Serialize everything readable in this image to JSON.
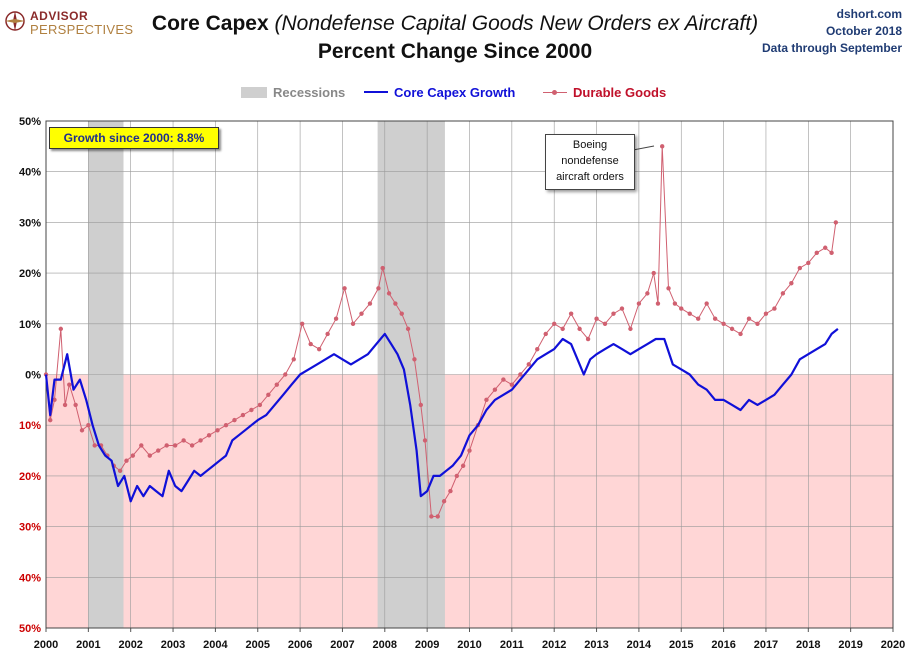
{
  "header": {
    "logo_line1": "ADVISOR",
    "logo_line2": "PERSPECTIVES",
    "title_main": "Core Capex",
    "title_paren": "(Nondefense  Capital Goods New Orders ex Aircraft)",
    "subtitle": "Percent Change Since 2000",
    "source_line1": "dshort.com",
    "source_line2": "October 2018",
    "source_line3": "Data through September"
  },
  "legend": {
    "recessions": "Recessions",
    "core_capex": "Core Capex Growth",
    "durable_goods": "Durable Goods"
  },
  "annotations": {
    "growth_box": "Growth since 2000:  8.8%",
    "callout_1": "Boeing",
    "callout_2": "nondefense",
    "callout_3": "aircraft orders"
  },
  "colors": {
    "core_capex": "#1010d8",
    "durable_goods": "#d06070",
    "recession": "#cfcfcf",
    "negative_zone": "#ffd6d6",
    "grid": "#9a9a9a",
    "positive_tick": "#111111",
    "negative_tick": "#cc0000"
  },
  "chart_data": {
    "type": "line",
    "title": "Core Capex (Nondefense  Capital Goods New Orders ex Aircraft) Percent Change Since 2000",
    "xlim": [
      2000,
      2020
    ],
    "ylim": [
      -50,
      50
    ],
    "x_ticks": [
      "2000",
      "2001",
      "2002",
      "2003",
      "2004",
      "2005",
      "2006",
      "2007",
      "2008",
      "2009",
      "2010",
      "2011",
      "2012",
      "2013",
      "2014",
      "2015",
      "2016",
      "2017",
      "2018",
      "2019",
      "2020"
    ],
    "y_ticks": [
      "50%",
      "40%",
      "30%",
      "20%",
      "10%",
      "0%",
      "10%",
      "20%",
      "30%",
      "40%",
      "50%"
    ],
    "recessions": [
      [
        2001.0,
        2001.83
      ],
      [
        2007.83,
        2009.42
      ]
    ],
    "legend_position": "top-center",
    "grid": true,
    "series": [
      {
        "name": "Core Capex Growth",
        "x": [
          2000,
          2000.1,
          2000.2,
          2000.35,
          2000.5,
          2000.65,
          2000.8,
          2000.95,
          2001.1,
          2001.25,
          2001.4,
          2001.55,
          2001.7,
          2001.85,
          2002.0,
          2002.15,
          2002.3,
          2002.45,
          2002.6,
          2002.75,
          2002.9,
          2003.05,
          2003.2,
          2003.35,
          2003.5,
          2003.65,
          2003.8,
          2003.95,
          2004.1,
          2004.25,
          2004.4,
          2004.55,
          2004.7,
          2004.85,
          2005.0,
          2005.2,
          2005.4,
          2005.6,
          2005.8,
          2006.0,
          2006.2,
          2006.4,
          2006.6,
          2006.8,
          2007.0,
          2007.2,
          2007.4,
          2007.6,
          2007.8,
          2008.0,
          2008.15,
          2008.3,
          2008.45,
          2008.6,
          2008.75,
          2008.85,
          2009.0,
          2009.15,
          2009.3,
          2009.45,
          2009.6,
          2009.8,
          2010.0,
          2010.2,
          2010.4,
          2010.6,
          2010.8,
          2011.0,
          2011.2,
          2011.4,
          2011.6,
          2011.8,
          2012.0,
          2012.2,
          2012.4,
          2012.55,
          2012.7,
          2012.85,
          2013.0,
          2013.2,
          2013.4,
          2013.6,
          2013.8,
          2014.0,
          2014.2,
          2014.4,
          2014.6,
          2014.8,
          2015.0,
          2015.2,
          2015.4,
          2015.6,
          2015.8,
          2016.0,
          2016.2,
          2016.4,
          2016.6,
          2016.8,
          2017.0,
          2017.2,
          2017.4,
          2017.6,
          2017.8,
          2018.0,
          2018.2,
          2018.4,
          2018.55,
          2018.7
        ],
        "values": [
          0,
          -8,
          -1,
          -1,
          4,
          -3,
          -1,
          -5,
          -10,
          -14,
          -16,
          -17,
          -22,
          -20,
          -25,
          -22,
          -24,
          -22,
          -23,
          -24,
          -19,
          -22,
          -23,
          -21,
          -19,
          -20,
          -19,
          -18,
          -17,
          -16,
          -13,
          -12,
          -11,
          -10,
          -9,
          -8,
          -6,
          -4,
          -2,
          0,
          1,
          2,
          3,
          4,
          3,
          2,
          3,
          4,
          6,
          8,
          6,
          4,
          1,
          -6,
          -15,
          -24,
          -23,
          -20,
          -20,
          -19,
          -18,
          -16,
          -12,
          -10,
          -7,
          -5,
          -4,
          -3,
          -1,
          1,
          3,
          4,
          5,
          7,
          6,
          3,
          0,
          3,
          4,
          5,
          6,
          5,
          4,
          5,
          6,
          7,
          7,
          2,
          1,
          0,
          -2,
          -3,
          -5,
          -5,
          -6,
          -7,
          -5,
          -6,
          -5,
          -4,
          -2,
          0,
          3,
          4,
          5,
          6,
          8,
          9
        ]
      },
      {
        "name": "Durable Goods",
        "x": [
          2000,
          2000.1,
          2000.2,
          2000.35,
          2000.45,
          2000.55,
          2000.7,
          2000.85,
          2001.0,
          2001.15,
          2001.3,
          2001.45,
          2001.6,
          2001.75,
          2001.9,
          2002.05,
          2002.25,
          2002.45,
          2002.65,
          2002.85,
          2003.05,
          2003.25,
          2003.45,
          2003.65,
          2003.85,
          2004.05,
          2004.25,
          2004.45,
          2004.65,
          2004.85,
          2005.05,
          2005.25,
          2005.45,
          2005.65,
          2005.85,
          2006.05,
          2006.25,
          2006.45,
          2006.65,
          2006.85,
          2007.05,
          2007.25,
          2007.45,
          2007.65,
          2007.85,
          2007.95,
          2008.1,
          2008.25,
          2008.4,
          2008.55,
          2008.7,
          2008.85,
          2008.95,
          2009.1,
          2009.25,
          2009.4,
          2009.55,
          2009.7,
          2009.85,
          2010.0,
          2010.2,
          2010.4,
          2010.6,
          2010.8,
          2011.0,
          2011.2,
          2011.4,
          2011.6,
          2011.8,
          2012.0,
          2012.2,
          2012.4,
          2012.6,
          2012.8,
          2013.0,
          2013.2,
          2013.4,
          2013.6,
          2013.8,
          2014.0,
          2014.2,
          2014.35,
          2014.45,
          2014.55,
          2014.7,
          2014.85,
          2015.0,
          2015.2,
          2015.4,
          2015.6,
          2015.8,
          2016.0,
          2016.2,
          2016.4,
          2016.6,
          2016.8,
          2017.0,
          2017.2,
          2017.4,
          2017.6,
          2017.8,
          2018.0,
          2018.2,
          2018.4,
          2018.55,
          2018.65
        ],
        "values": [
          0,
          -9,
          -5,
          9,
          -6,
          -2,
          -6,
          -11,
          -10,
          -14,
          -14,
          -16,
          -18,
          -19,
          -17,
          -16,
          -14,
          -16,
          -15,
          -14,
          -14,
          -13,
          -14,
          -13,
          -12,
          -11,
          -10,
          -9,
          -8,
          -7,
          -6,
          -4,
          -2,
          0,
          3,
          10,
          6,
          5,
          8,
          11,
          17,
          10,
          12,
          14,
          17,
          21,
          16,
          14,
          12,
          9,
          3,
          -6,
          -13,
          -28,
          -28,
          -25,
          -23,
          -20,
          -18,
          -15,
          -10,
          -5,
          -3,
          -1,
          -2,
          0,
          2,
          5,
          8,
          10,
          9,
          12,
          9,
          7,
          11,
          10,
          12,
          13,
          9,
          14,
          16,
          20,
          14,
          45,
          17,
          14,
          13,
          12,
          11,
          14,
          11,
          10,
          9,
          8,
          11,
          10,
          12,
          13,
          16,
          18,
          21,
          22,
          24,
          25,
          24,
          30
        ]
      }
    ]
  }
}
